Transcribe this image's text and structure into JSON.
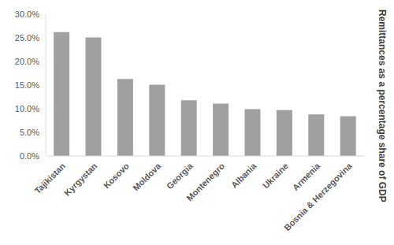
{
  "chart_data": {
    "type": "bar",
    "y_label": "Remittances as a percentage share of GDP",
    "categories": [
      "Tajikistan",
      "Kyrgystan",
      "Kosovo",
      "Moldova",
      "Georgia",
      "Montenegro",
      "Albania",
      "Ukraine",
      "Armenia",
      "Bosnia & Herzegovina"
    ],
    "values": [
      26.2,
      25.1,
      16.3,
      15.1,
      11.8,
      11.1,
      9.9,
      9.7,
      8.8,
      8.4
    ],
    "color": "#a0a0a0",
    "ylim": [
      0,
      30
    ],
    "yticks": [
      {
        "value": 0,
        "label": "0.0%"
      },
      {
        "value": 5,
        "label": "5.0%"
      },
      {
        "value": 10,
        "label": "10.0%"
      },
      {
        "value": 15,
        "label": "15.0%"
      },
      {
        "value": 20,
        "label": "20.0%"
      },
      {
        "value": 25,
        "label": "25.0%"
      },
      {
        "value": 30,
        "label": "30.0%"
      }
    ],
    "grid": false
  }
}
